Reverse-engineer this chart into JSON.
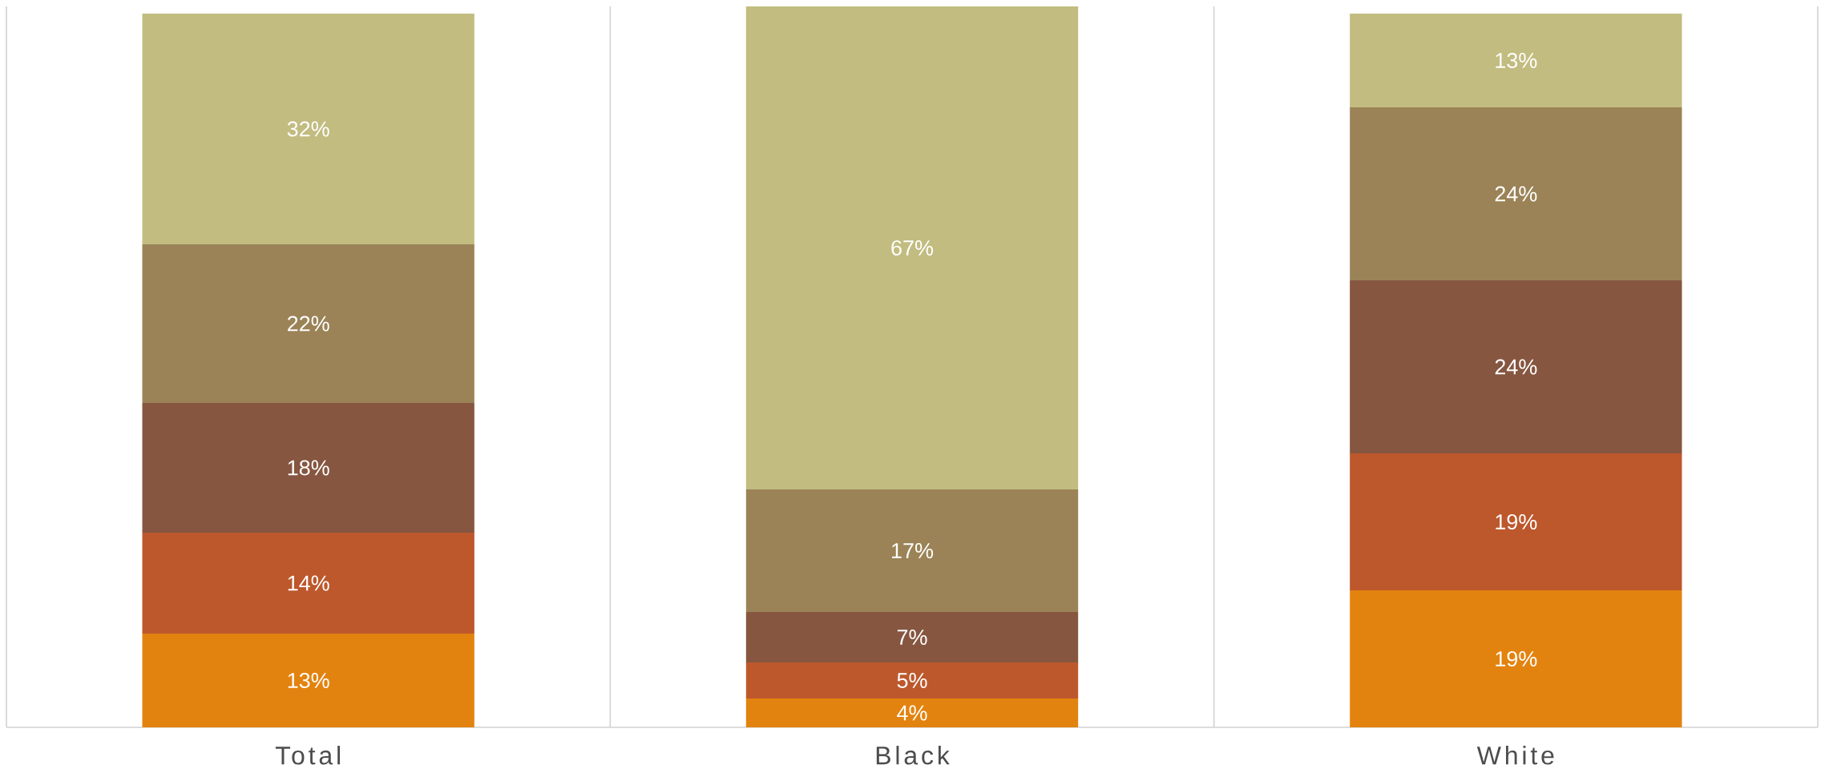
{
  "chart_data": {
    "type": "bar",
    "stacked": true,
    "categories": [
      "Total",
      "Black",
      "White"
    ],
    "series": [
      {
        "color": "#e3830f",
        "values": [
          13,
          4,
          19
        ],
        "value_labels": [
          "13%",
          "4%",
          "19%"
        ]
      },
      {
        "color": "#bd582c",
        "values": [
          14,
          5,
          19
        ],
        "value_labels": [
          "14%",
          "5%",
          "19%"
        ]
      },
      {
        "color": "#865640",
        "values": [
          18,
          7,
          24
        ],
        "value_labels": [
          "18%",
          "7%",
          "24%"
        ]
      },
      {
        "color": "#9b8357",
        "values": [
          22,
          17,
          24
        ],
        "value_labels": [
          "22%",
          "17%",
          "24%"
        ]
      },
      {
        "color": "#c2bc80",
        "values": [
          32,
          67,
          13
        ],
        "value_labels": [
          "32%",
          "67%",
          "13%"
        ]
      }
    ],
    "tick_labels": "x",
    "grid": "x"
  }
}
